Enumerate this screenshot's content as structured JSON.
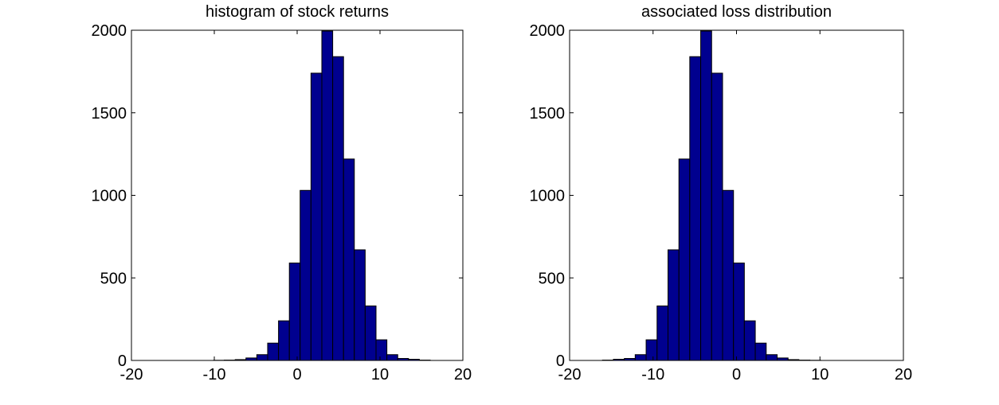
{
  "chart_data": [
    {
      "type": "histogram",
      "title": "histogram of stock returns",
      "color": "#00008f",
      "bins": [
        -10.1,
        -8.79,
        -7.48,
        -6.18,
        -4.87,
        -3.56,
        -2.25,
        -0.94,
        0.36,
        1.67,
        2.98,
        4.29,
        5.6,
        6.9,
        8.21,
        9.52,
        10.83,
        12.14,
        13.44,
        14.75,
        16.06
      ],
      "values": [
        1,
        2,
        5,
        15,
        35,
        105,
        240,
        590,
        1030,
        1740,
        1995,
        1840,
        1220,
        670,
        330,
        125,
        35,
        12,
        7,
        2
      ],
      "xlim": [
        -20,
        20
      ],
      "ylim": [
        0,
        2000
      ],
      "xticks": [
        -20,
        -10,
        0,
        10,
        20
      ],
      "yticks": [
        0,
        500,
        1000,
        1500,
        2000
      ]
    },
    {
      "type": "histogram",
      "title": "associated loss distribution",
      "color": "#00008f",
      "bins": [
        -16.06,
        -14.75,
        -13.44,
        -12.14,
        -10.83,
        -9.52,
        -8.21,
        -6.9,
        -5.6,
        -4.29,
        -2.98,
        -1.67,
        -0.36,
        0.94,
        2.25,
        3.56,
        4.87,
        6.18,
        7.48,
        8.79,
        10.1
      ],
      "values": [
        2,
        7,
        12,
        35,
        125,
        330,
        670,
        1220,
        1840,
        1995,
        1740,
        1030,
        590,
        240,
        105,
        35,
        15,
        5,
        2,
        1
      ],
      "xlim": [
        -20,
        20
      ],
      "ylim": [
        0,
        2000
      ],
      "xticks": [
        -20,
        -10,
        0,
        10,
        20
      ],
      "yticks": [
        0,
        500,
        1000,
        1500,
        2000
      ]
    }
  ]
}
